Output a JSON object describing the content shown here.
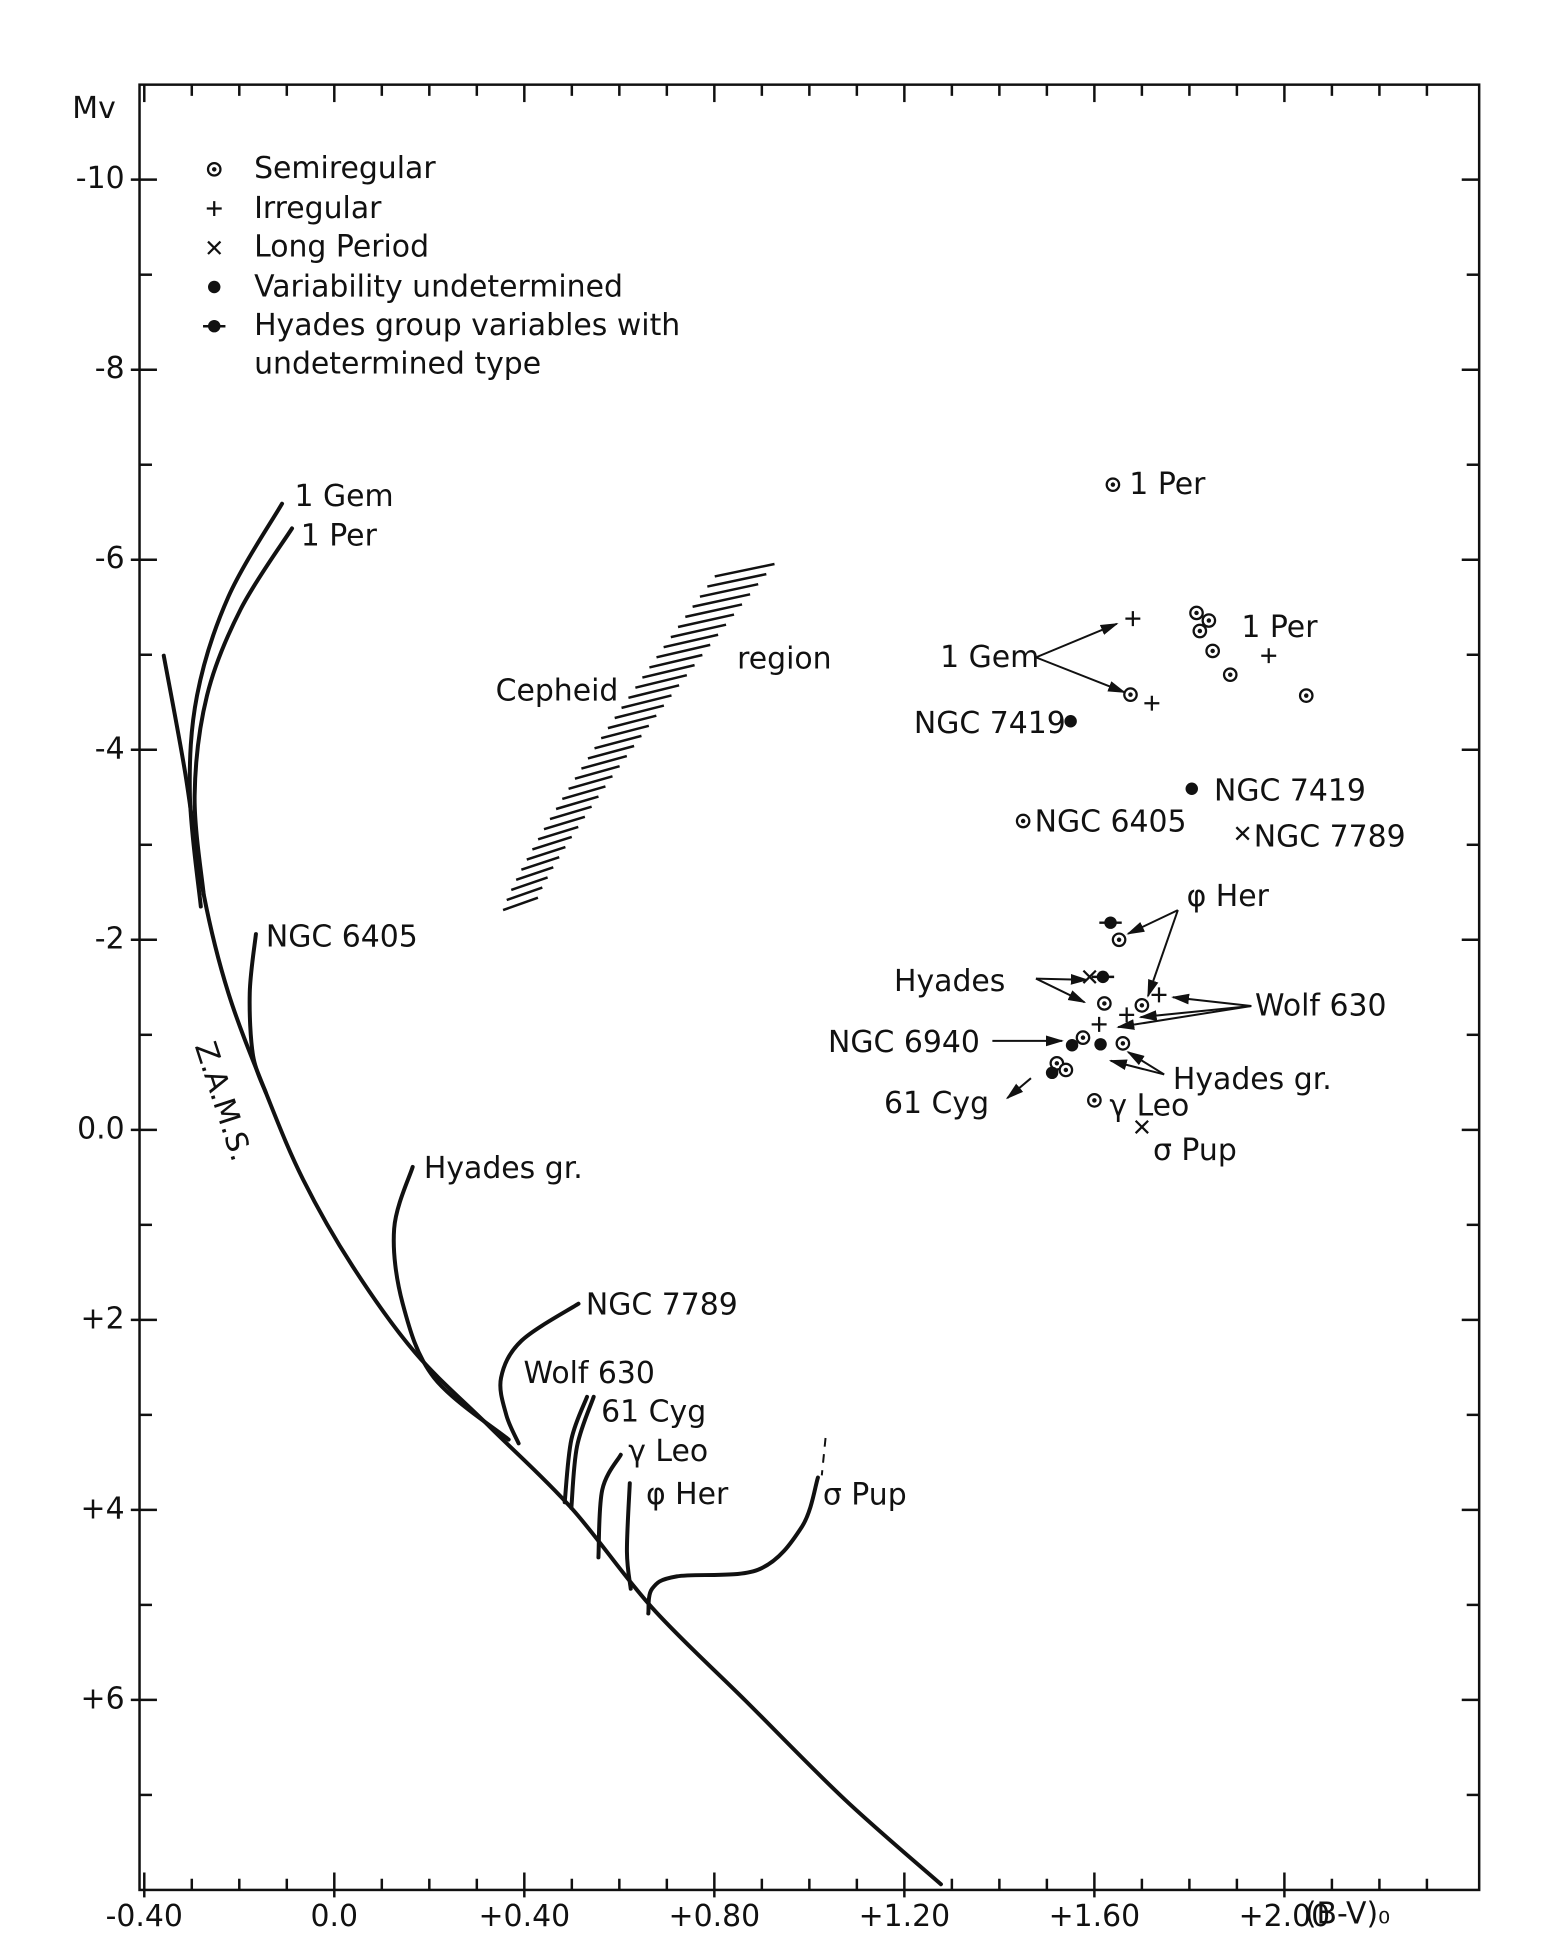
{
  "chart_data": {
    "type": "scatter",
    "y_label": "Mv",
    "x_label": "(B-V)₀",
    "xlim": [
      -0.41,
      2.41
    ],
    "ylim": [
      -11,
      8
    ],
    "xticks": [
      {
        "value": -0.4,
        "label": "-0.40"
      },
      {
        "value": 0,
        "label": "0.0"
      },
      {
        "value": 0.4,
        "label": "+0.40"
      },
      {
        "value": 0.8,
        "label": "+0.80"
      },
      {
        "value": 1.2,
        "label": "+1.20"
      },
      {
        "value": 1.6,
        "label": "+1.60"
      },
      {
        "value": 2,
        "label": "+2.00"
      }
    ],
    "xticks_minor": [
      -0.3,
      -0.2,
      -0.1,
      0.1,
      0.2,
      0.3,
      0.5,
      0.6,
      0.7,
      0.9,
      1.0,
      1.1,
      1.3,
      1.4,
      1.5,
      1.7,
      1.8,
      1.9,
      2.1,
      2.2,
      2.3
    ],
    "yticks": [
      -10,
      -8,
      -6,
      -4,
      -2,
      {
        "value": 0,
        "label": "0.0"
      },
      {
        "value": 2,
        "label": "+2"
      },
      {
        "value": 4,
        "label": "+4"
      },
      {
        "value": 6,
        "label": "+6"
      }
    ],
    "yticks_minor": [
      -9,
      -7,
      -5,
      -3,
      -1,
      1,
      3,
      5,
      7
    ],
    "legend": "upper left",
    "color": "#111111",
    "series": [
      {
        "name": "Semiregular",
        "marker": "circle-dot",
        "x": [
          1.639,
          1.815,
          1.841,
          1.822,
          1.849,
          1.886,
          2.046,
          1.676,
          1.45,
          1.652,
          1.621,
          1.7,
          1.66,
          1.576,
          1.521,
          1.54,
          1.6
        ],
        "values": [
          -6.79,
          -5.44,
          -5.36,
          -5.25,
          -5.04,
          -4.79,
          -4.57,
          -4.58,
          -3.25,
          -2.0,
          -1.33,
          -1.31,
          -0.91,
          -0.97,
          -0.7,
          -0.63,
          -0.31
        ]
      },
      {
        "name": "Irregular",
        "marker": "plus",
        "x": [
          1.681,
          1.721,
          1.967,
          1.736,
          1.668,
          1.61
        ],
        "values": [
          -5.38,
          -4.49,
          -4.99,
          -1.42,
          -1.21,
          -1.11
        ]
      },
      {
        "name": "Long Period",
        "marker": "cross",
        "x": [
          1.912,
          1.59,
          1.7
        ],
        "values": [
          -3.12,
          -1.61,
          -0.03
        ]
      },
      {
        "name": "Variability  undetermined",
        "marker": "dot",
        "x": [
          1.55,
          1.805,
          1.613,
          1.553,
          1.511
        ],
        "values": [
          -4.3,
          -3.59,
          -0.9,
          -0.89,
          -0.6
        ]
      },
      {
        "name": "Hyades group variables with undetermined type",
        "marker": "dot-bar",
        "x": [
          1.634,
          1.618
        ],
        "values": [
          -2.18,
          -1.61
        ]
      }
    ],
    "tracks": [
      {
        "name": "Z.A.M.S.",
        "x": [
          -0.359,
          -0.315,
          -0.275,
          -0.223,
          -0.144,
          -0.066,
          0.039,
          0.171,
          0.328,
          0.499,
          0.669,
          0.866,
          1.075,
          1.277
        ],
        "values": [
          -4.99,
          -3.79,
          -2.48,
          -1.44,
          -0.39,
          0.52,
          1.44,
          2.35,
          3.13,
          3.98,
          5.03,
          6.01,
          7.05,
          7.94
        ]
      },
      {
        "name": "1 Gem",
        "x": [
          -0.11,
          -0.223,
          -0.289,
          -0.304,
          -0.281
        ],
        "values": [
          -6.59,
          -5.61,
          -4.57,
          -3.52,
          -2.35
        ]
      },
      {
        "name": "1 Per",
        "x": [
          -0.089,
          -0.197,
          -0.268,
          -0.294,
          -0.275
        ],
        "values": [
          -6.33,
          -5.48,
          -4.57,
          -3.52,
          -2.48
        ]
      },
      {
        "name": "NGC 6405",
        "x": [
          -0.165,
          -0.178,
          -0.171,
          -0.144
        ],
        "values": [
          -2.06,
          -1.44,
          -0.78,
          -0.39
        ]
      },
      {
        "name": "Hyades gr.",
        "x": [
          0.165,
          0.126,
          0.144,
          0.21,
          0.367
        ],
        "values": [
          0.39,
          1.04,
          1.83,
          2.61,
          3.26
        ]
      },
      {
        "name": "NGC  7789",
        "x": [
          0.514,
          0.394,
          0.351,
          0.362,
          0.388
        ],
        "values": [
          1.83,
          2.22,
          2.61,
          3.0,
          3.3
        ]
      },
      {
        "name": "Wolf  630",
        "x": [
          0.532,
          0.499,
          0.485
        ],
        "values": [
          2.81,
          3.26,
          3.92
        ]
      },
      {
        "name": "61 Cyg",
        "x": [
          0.546,
          0.511,
          0.499
        ],
        "values": [
          2.81,
          3.33,
          3.98
        ]
      },
      {
        "name": "γ Leo",
        "x": [
          0.603,
          0.564,
          0.556
        ],
        "values": [
          3.42,
          3.79,
          4.5
        ]
      },
      {
        "name": "φ Her",
        "x": [
          0.622,
          0.616,
          0.624
        ],
        "values": [
          3.72,
          4.44,
          4.83
        ]
      },
      {
        "name": "σ Pup",
        "x": [
          1.018,
          0.984,
          0.892,
          0.721,
          0.669,
          0.661
        ],
        "values": [
          3.66,
          4.18,
          4.63,
          4.7,
          4.83,
          5.09
        ]
      }
    ],
    "annotations": [
      "Cepheid",
      "region",
      "1 Per",
      "1 Per",
      "1 Gem",
      "NGC 7419",
      "NGC  7419",
      "NGC 6405",
      "NGC 7789",
      "φ Her",
      "Hyades",
      "Wolf  630",
      "NGC 6940",
      "Hyades gr.",
      "61  Cyg",
      "γ Leo",
      "σ Pup"
    ]
  }
}
